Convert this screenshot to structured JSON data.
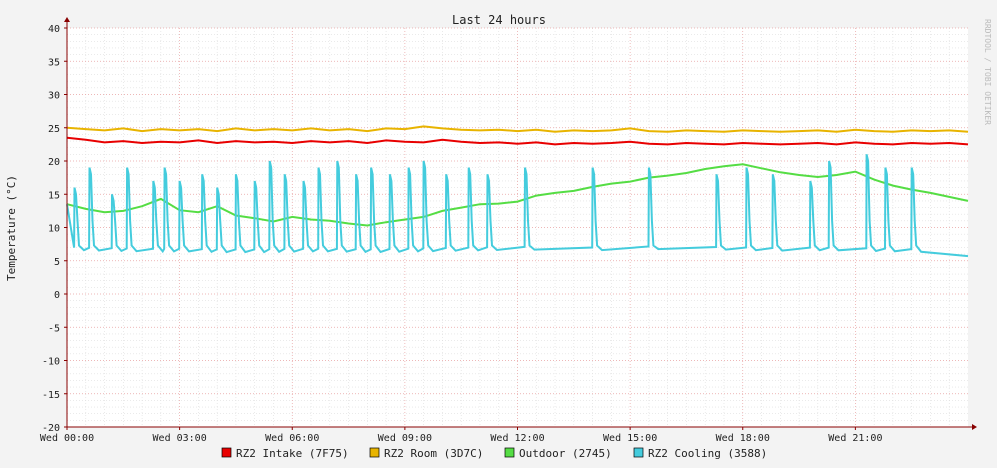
{
  "chart_data": {
    "type": "line",
    "title": "Last 24 hours",
    "xlabel": "",
    "ylabel": "Temperature (°C)",
    "ylim": [
      -20,
      40
    ],
    "yticks": [
      -20,
      -15,
      -10,
      -5,
      0,
      5,
      10,
      15,
      20,
      25,
      30,
      35,
      40
    ],
    "xrange_hours": [
      0,
      24
    ],
    "xticks": [
      {
        "h": 0,
        "label": "Wed 00:00"
      },
      {
        "h": 3,
        "label": "Wed 03:00"
      },
      {
        "h": 6,
        "label": "Wed 06:00"
      },
      {
        "h": 9,
        "label": "Wed 09:00"
      },
      {
        "h": 12,
        "label": "Wed 12:00"
      },
      {
        "h": 15,
        "label": "Wed 15:00"
      },
      {
        "h": 18,
        "label": "Wed 18:00"
      },
      {
        "h": 21,
        "label": "Wed 21:00"
      }
    ],
    "grid": true,
    "legend_position": "bottom",
    "watermark": "RRDTOOL / TOBI OETIKER",
    "colors": {
      "background": "#f3f3f3",
      "plot": "#ffffff",
      "grid_minor": "#dddddd",
      "grid_major": "#e8a0a0",
      "axis": "#880000"
    },
    "series": [
      {
        "name": "RZ2 Intake (7F75)",
        "color": "#e80000",
        "x": [
          0,
          0.5,
          1,
          1.5,
          2,
          2.5,
          3,
          3.5,
          4,
          4.5,
          5,
          5.5,
          6,
          6.5,
          7,
          7.5,
          8,
          8.5,
          9,
          9.5,
          10,
          10.5,
          11,
          11.5,
          12,
          12.5,
          13,
          13.5,
          14,
          14.5,
          15,
          15.5,
          16,
          16.5,
          17,
          17.5,
          18,
          18.5,
          19,
          19.5,
          20,
          20.5,
          21,
          21.5,
          22,
          22.5,
          23,
          23.5,
          24
        ],
        "y": [
          23.5,
          23.2,
          22.8,
          23.0,
          22.7,
          22.9,
          22.8,
          23.1,
          22.7,
          23.0,
          22.8,
          22.9,
          22.7,
          23.0,
          22.8,
          23.0,
          22.7,
          23.1,
          22.9,
          22.8,
          23.2,
          22.9,
          22.7,
          22.8,
          22.6,
          22.8,
          22.5,
          22.7,
          22.6,
          22.7,
          22.9,
          22.6,
          22.5,
          22.7,
          22.6,
          22.5,
          22.7,
          22.6,
          22.5,
          22.6,
          22.7,
          22.5,
          22.8,
          22.6,
          22.5,
          22.7,
          22.6,
          22.7,
          22.5
        ]
      },
      {
        "name": "RZ2 Room (3D7C)",
        "color": "#e8b400",
        "x": [
          0,
          0.5,
          1,
          1.5,
          2,
          2.5,
          3,
          3.5,
          4,
          4.5,
          5,
          5.5,
          6,
          6.5,
          7,
          7.5,
          8,
          8.5,
          9,
          9.5,
          10,
          10.5,
          11,
          11.5,
          12,
          12.5,
          13,
          13.5,
          14,
          14.5,
          15,
          15.5,
          16,
          16.5,
          17,
          17.5,
          18,
          18.5,
          19,
          19.5,
          20,
          20.5,
          21,
          21.5,
          22,
          22.5,
          23,
          23.5,
          24
        ],
        "y": [
          25.0,
          24.8,
          24.6,
          24.9,
          24.5,
          24.8,
          24.6,
          24.8,
          24.5,
          24.9,
          24.6,
          24.8,
          24.6,
          24.9,
          24.6,
          24.8,
          24.5,
          24.9,
          24.8,
          25.2,
          24.9,
          24.7,
          24.6,
          24.7,
          24.5,
          24.7,
          24.4,
          24.6,
          24.5,
          24.6,
          24.9,
          24.5,
          24.4,
          24.6,
          24.5,
          24.4,
          24.6,
          24.5,
          24.4,
          24.5,
          24.6,
          24.4,
          24.7,
          24.5,
          24.4,
          24.6,
          24.5,
          24.6,
          24.4
        ]
      },
      {
        "name": "Outdoor (2745)",
        "color": "#55dd44",
        "x": [
          0,
          0.5,
          1,
          1.5,
          2,
          2.5,
          3,
          3.5,
          4,
          4.5,
          5,
          5.5,
          6,
          6.5,
          7,
          7.5,
          8,
          8.5,
          9,
          9.5,
          10,
          10.5,
          11,
          11.5,
          12,
          12.5,
          13,
          13.5,
          14,
          14.5,
          15,
          15.5,
          16,
          16.5,
          17,
          17.5,
          18,
          18.5,
          19,
          19.5,
          20,
          20.5,
          21,
          21.5,
          22,
          22.5,
          23,
          23.5,
          24
        ],
        "y": [
          13.5,
          12.8,
          12.3,
          12.5,
          13.2,
          14.3,
          12.6,
          12.3,
          13.2,
          11.8,
          11.4,
          10.9,
          11.6,
          11.2,
          11.0,
          10.6,
          10.3,
          10.8,
          11.2,
          11.6,
          12.5,
          13.0,
          13.5,
          13.6,
          13.9,
          14.8,
          15.2,
          15.5,
          16.1,
          16.6,
          16.9,
          17.5,
          17.8,
          18.2,
          18.8,
          19.2,
          19.5,
          18.9,
          18.3,
          17.9,
          17.6,
          17.9,
          18.4,
          17.2,
          16.3,
          15.7,
          15.2,
          14.6,
          14.0
        ]
      },
      {
        "name": "RZ2 Cooling (3588)",
        "color": "#44ccdd",
        "x": [
          0,
          1,
          2,
          3,
          4,
          5,
          6,
          7,
          8,
          9,
          10,
          11,
          12,
          13,
          14,
          15,
          16,
          17,
          18,
          19,
          20,
          21,
          22,
          23,
          24
        ],
        "y": [
          6.0,
          5.9,
          5.8,
          5.8,
          5.7,
          5.7,
          5.8,
          5.8,
          5.7,
          5.8,
          5.9,
          6.0,
          6.1,
          6.0,
          6.0,
          6.1,
          6.2,
          6.1,
          6.0,
          5.9,
          6.0,
          5.9,
          5.8,
          5.7,
          5.7
        ],
        "spikes": [
          0.2,
          0.6,
          1.2,
          1.6,
          2.3,
          2.6,
          3.0,
          3.6,
          4.0,
          4.5,
          5.0,
          5.4,
          5.8,
          6.3,
          6.7,
          7.2,
          7.7,
          8.1,
          8.6,
          9.1,
          9.5,
          10.1,
          10.7,
          11.2,
          12.2,
          14.0,
          15.5,
          17.3,
          18.1,
          18.8,
          19.8,
          20.3,
          21.3,
          21.8,
          22.5
        ]
      }
    ]
  }
}
